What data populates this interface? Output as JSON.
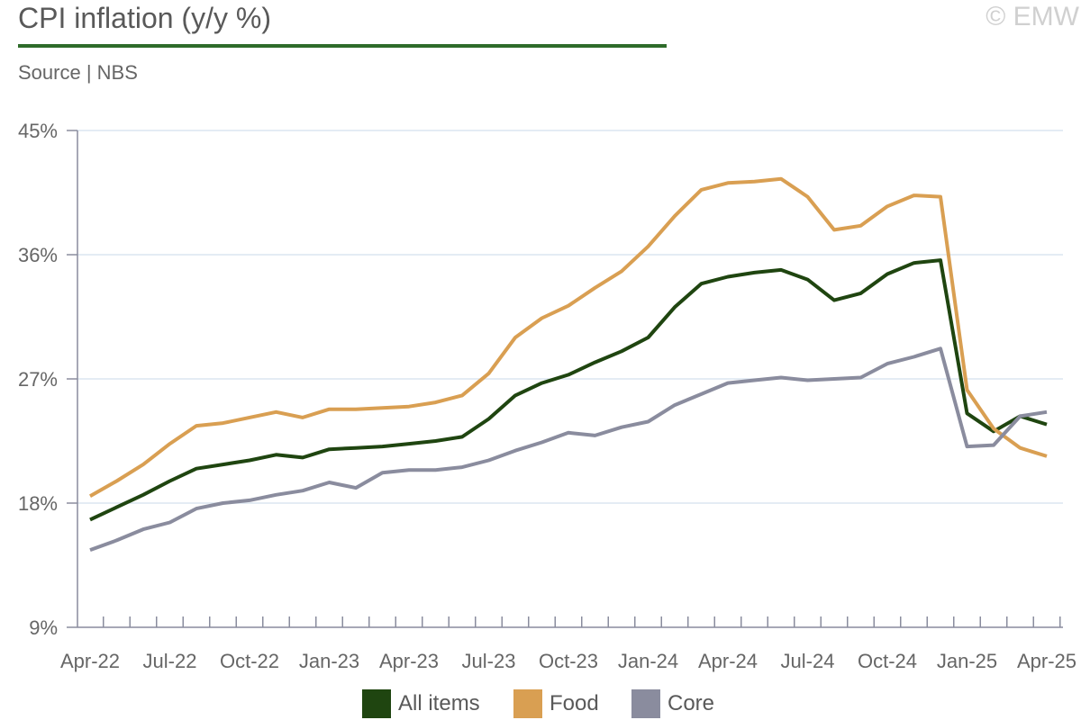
{
  "header": {
    "title": "CPI inflation (y/y %)",
    "source": "Source | NBS",
    "watermark": "© EMW"
  },
  "colors": {
    "all_items": "#1f4510",
    "food": "#d99f52",
    "core": "#8a8c9e",
    "title_rule": "#2e6b2a",
    "gridline": "#dce6f0",
    "axis": "#8a8c9e"
  },
  "chart_data": {
    "type": "line",
    "title": "CPI inflation (y/y %)",
    "xlabel": "",
    "ylabel": "",
    "ylim": [
      9,
      45
    ],
    "yticks": [
      9,
      18,
      27,
      36,
      45
    ],
    "ytick_labels": [
      "9%",
      "18%",
      "27%",
      "36%",
      "45%"
    ],
    "grid": true,
    "legend_position": "bottom",
    "x": [
      "Apr-22",
      "May-22",
      "Jun-22",
      "Jul-22",
      "Aug-22",
      "Sep-22",
      "Oct-22",
      "Nov-22",
      "Dec-22",
      "Jan-23",
      "Feb-23",
      "Mar-23",
      "Apr-23",
      "May-23",
      "Jun-23",
      "Jul-23",
      "Aug-23",
      "Sep-23",
      "Oct-23",
      "Nov-23",
      "Dec-23",
      "Jan-24",
      "Feb-24",
      "Mar-24",
      "Apr-24",
      "May-24",
      "Jun-24",
      "Jul-24",
      "Aug-24",
      "Sep-24",
      "Oct-24",
      "Nov-24",
      "Dec-24",
      "Jan-25",
      "Feb-25",
      "Mar-25",
      "Apr-25"
    ],
    "xtick_labels": [
      "Apr-22",
      "Jul-22",
      "Oct-22",
      "Jan-23",
      "Apr-23",
      "Jul-23",
      "Oct-23",
      "Jan-24",
      "Apr-24",
      "Jul-24",
      "Oct-24",
      "Jan-25",
      "Apr-25"
    ],
    "series": [
      {
        "name": "All items",
        "color": "#1f4510",
        "values": [
          16.8,
          17.7,
          18.6,
          19.6,
          20.5,
          20.8,
          21.1,
          21.5,
          21.3,
          21.9,
          22.0,
          22.1,
          22.3,
          22.5,
          22.8,
          24.1,
          25.8,
          26.7,
          27.3,
          28.2,
          29.0,
          30.0,
          32.2,
          33.9,
          34.4,
          34.7,
          34.9,
          34.2,
          32.7,
          33.2,
          34.6,
          35.4,
          35.6,
          24.5,
          23.2,
          24.3,
          23.7
        ]
      },
      {
        "name": "Food",
        "color": "#d99f52",
        "values": [
          18.5,
          19.6,
          20.8,
          22.3,
          23.6,
          23.8,
          24.2,
          24.6,
          24.2,
          24.8,
          24.8,
          24.9,
          25.0,
          25.3,
          25.8,
          27.4,
          30.0,
          31.4,
          32.3,
          33.6,
          34.8,
          36.6,
          38.8,
          40.7,
          41.2,
          41.3,
          41.5,
          40.2,
          37.8,
          38.1,
          39.5,
          40.3,
          40.2,
          26.2,
          23.4,
          22.0,
          21.4
        ]
      },
      {
        "name": "Core",
        "color": "#8a8c9e",
        "values": [
          14.6,
          15.3,
          16.1,
          16.6,
          17.6,
          18.0,
          18.2,
          18.6,
          18.9,
          19.5,
          19.1,
          20.2,
          20.4,
          20.4,
          20.6,
          21.1,
          21.8,
          22.4,
          23.1,
          22.9,
          23.5,
          23.9,
          25.1,
          25.9,
          26.7,
          26.9,
          27.1,
          26.9,
          27.0,
          27.1,
          28.1,
          28.6,
          29.2,
          22.1,
          22.2,
          24.3,
          24.6
        ]
      }
    ]
  }
}
